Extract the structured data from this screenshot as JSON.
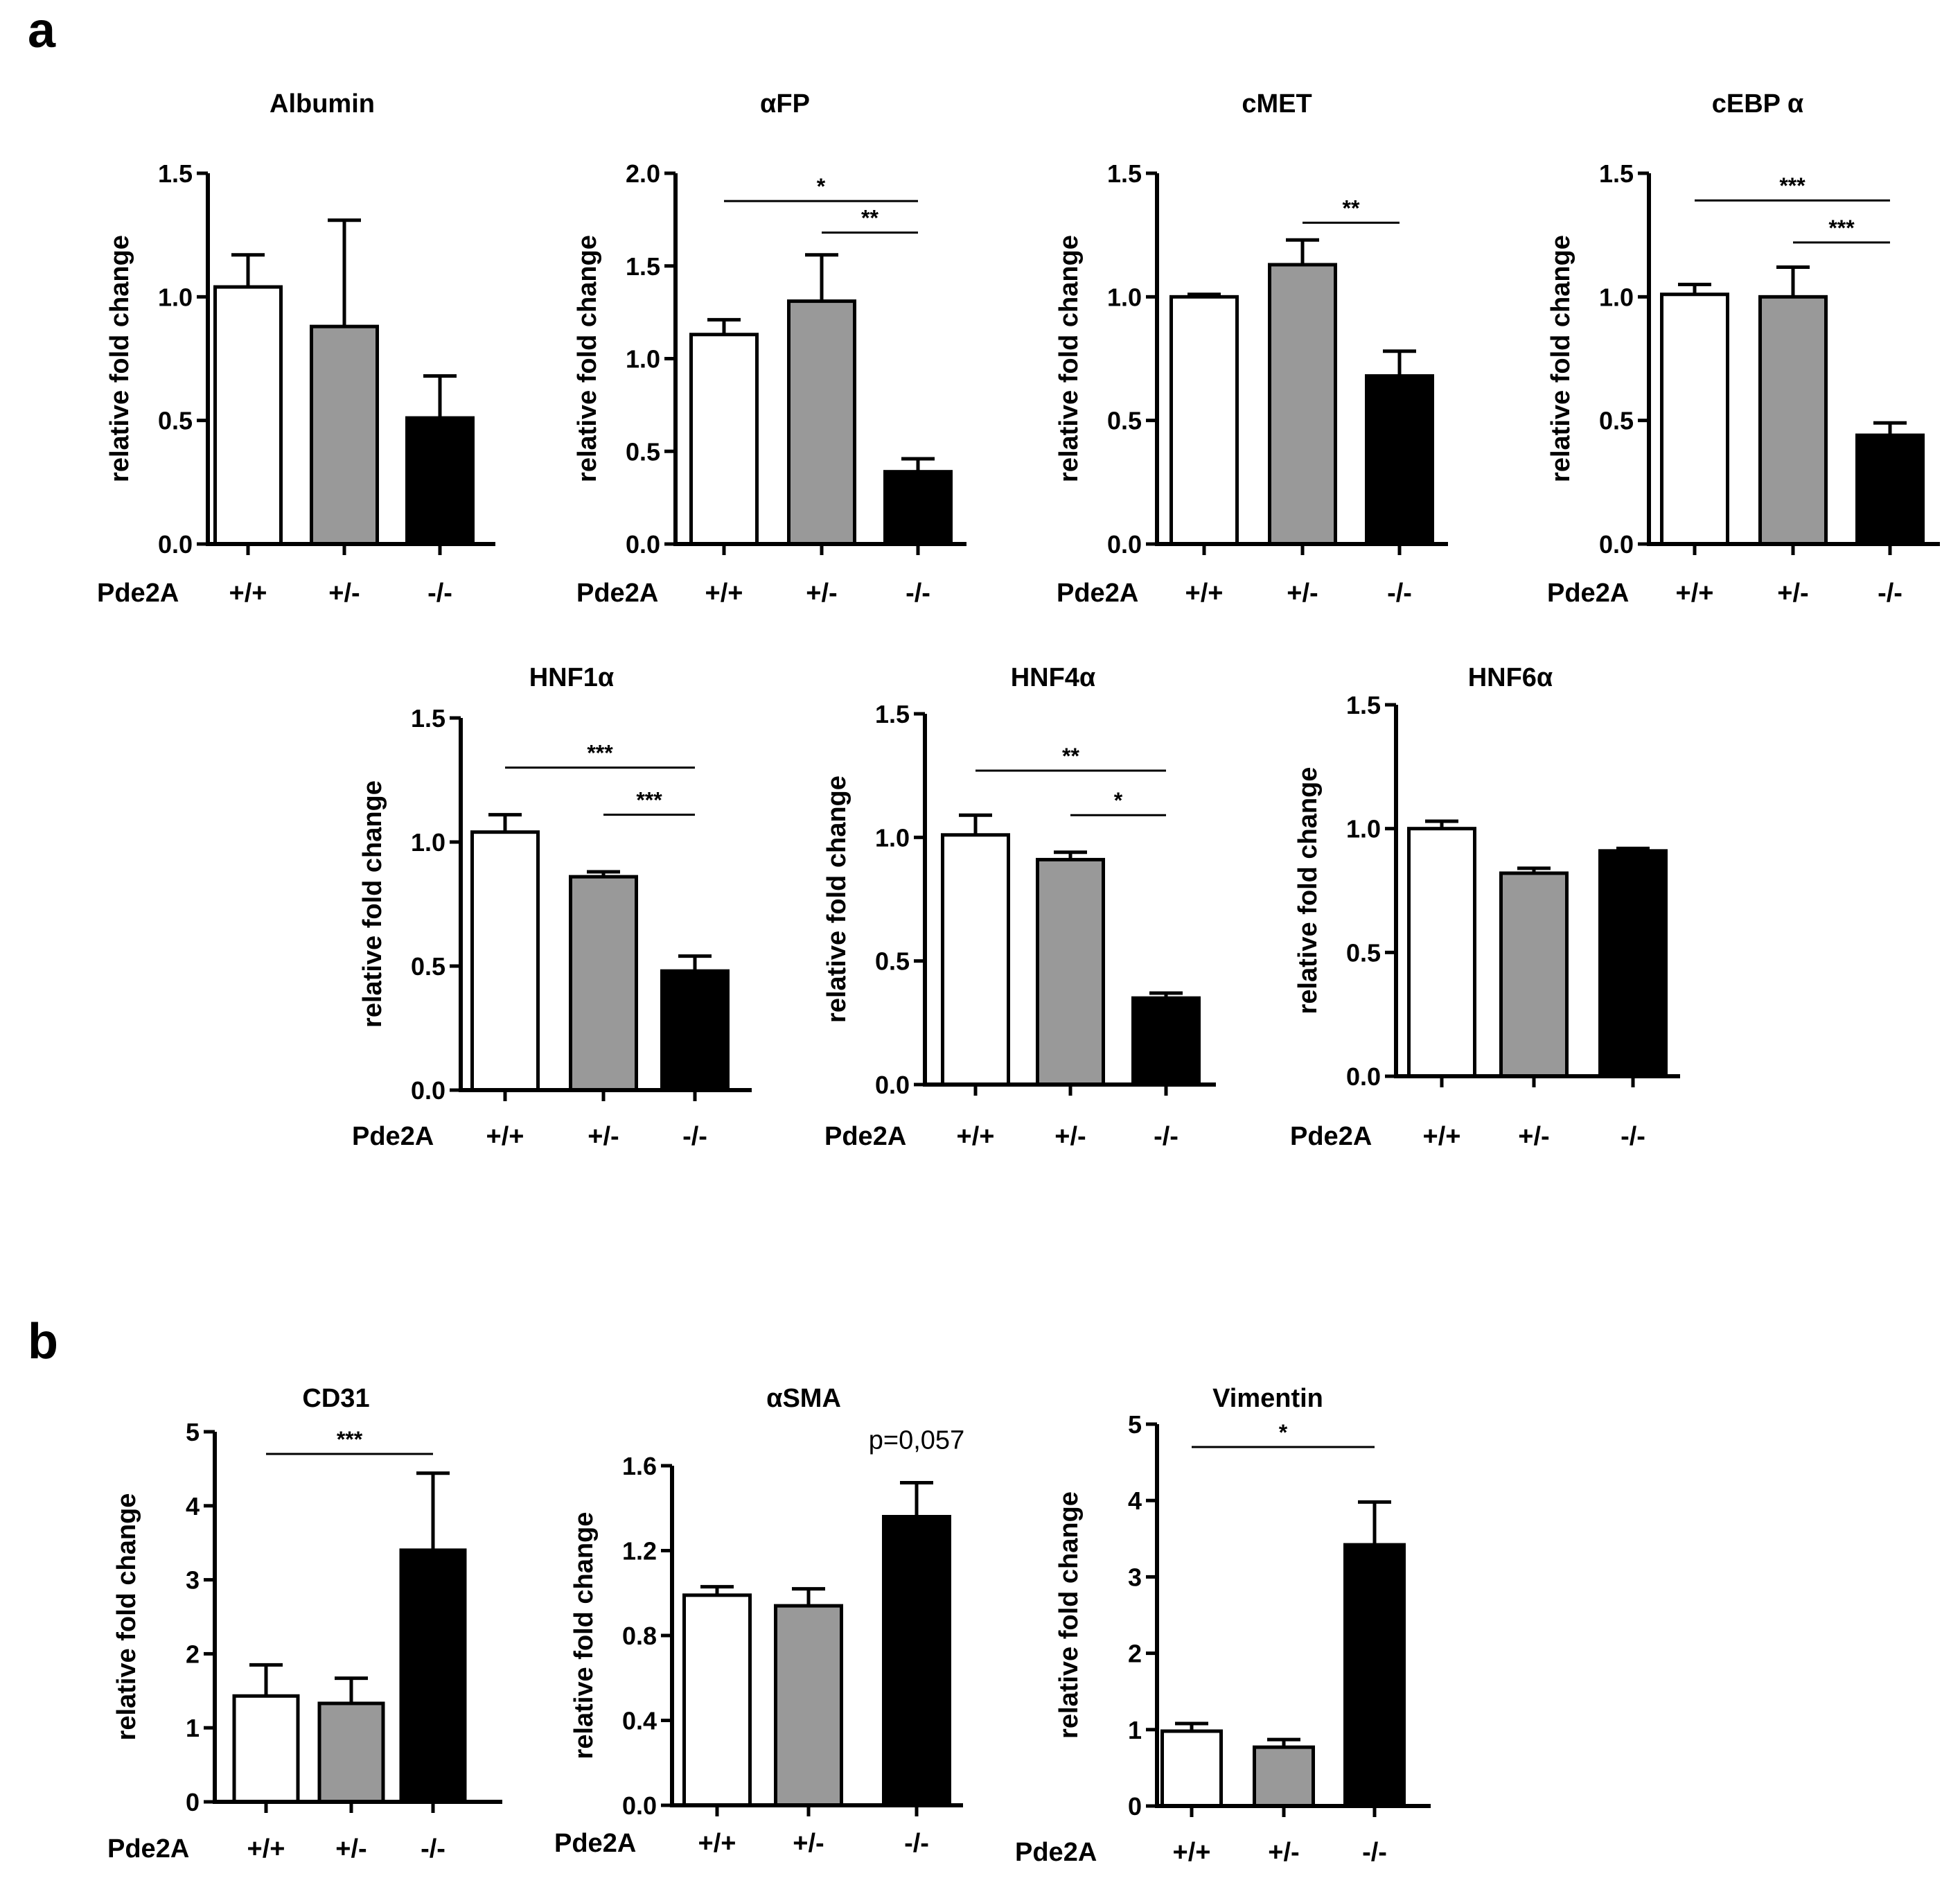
{
  "panels": [
    {
      "letter": "a"
    },
    {
      "letter": "b"
    }
  ],
  "chart_data": [
    {
      "type": "bar",
      "panel": "a",
      "title": "Albumin",
      "ylabel": "relative fold change",
      "xlabel": "Pde2A",
      "categories": [
        "+/+",
        "+/-",
        "-/-"
      ],
      "values": [
        1.04,
        0.88,
        0.51
      ],
      "errors": [
        0.13,
        0.43,
        0.17
      ],
      "ylim": [
        0,
        1.5
      ],
      "yticks": [
        0.0,
        0.5,
        1.0,
        1.5
      ],
      "ytick_labels": [
        "0.0",
        "0.5",
        "1.0",
        "1.5"
      ],
      "bar_colors": [
        "#ffffff",
        "#999999",
        "#000000"
      ],
      "significance": []
    },
    {
      "type": "bar",
      "panel": "a",
      "title": "αFP",
      "ylabel": "relative fold change",
      "xlabel": "Pde2A",
      "categories": [
        "+/+",
        "+/-",
        "-/-"
      ],
      "values": [
        1.13,
        1.31,
        0.39
      ],
      "errors": [
        0.08,
        0.25,
        0.07
      ],
      "ylim": [
        0,
        2.0
      ],
      "yticks": [
        0.0,
        0.5,
        1.0,
        1.5,
        2.0
      ],
      "ytick_labels": [
        "0.0",
        "0.5",
        "1.0",
        "1.5",
        "2.0"
      ],
      "bar_colors": [
        "#ffffff",
        "#999999",
        "#000000"
      ],
      "significance": [
        {
          "from": 0,
          "to": 2,
          "label": "*",
          "y": 1.85
        },
        {
          "from": 1,
          "to": 2,
          "label": "**",
          "y": 1.68
        }
      ]
    },
    {
      "type": "bar",
      "panel": "a",
      "title": "cMET",
      "ylabel": "relative fold change",
      "xlabel": "Pde2A",
      "categories": [
        "+/+",
        "+/-",
        "-/-"
      ],
      "values": [
        1.0,
        1.13,
        0.68
      ],
      "errors": [
        0.01,
        0.1,
        0.1
      ],
      "ylim": [
        0,
        1.5
      ],
      "yticks": [
        0.0,
        0.5,
        1.0,
        1.5
      ],
      "ytick_labels": [
        "0.0",
        "0.5",
        "1.0",
        "1.5"
      ],
      "bar_colors": [
        "#ffffff",
        "#999999",
        "#000000"
      ],
      "significance": [
        {
          "from": 1,
          "to": 2,
          "label": "**",
          "y": 1.3
        }
      ]
    },
    {
      "type": "bar",
      "panel": "a",
      "title": "cEBP α",
      "ylabel": "relative fold change",
      "xlabel": "Pde2A",
      "categories": [
        "+/+",
        "+/-",
        "-/-"
      ],
      "values": [
        1.01,
        1.0,
        0.44
      ],
      "errors": [
        0.04,
        0.12,
        0.05
      ],
      "ylim": [
        0,
        1.5
      ],
      "yticks": [
        0.0,
        0.5,
        1.0,
        1.5
      ],
      "ytick_labels": [
        "0.0",
        "0.5",
        "1.0",
        "1.5"
      ],
      "bar_colors": [
        "#ffffff",
        "#999999",
        "#000000"
      ],
      "significance": [
        {
          "from": 0,
          "to": 2,
          "label": "***",
          "y": 1.39
        },
        {
          "from": 1,
          "to": 2,
          "label": "***",
          "y": 1.22
        }
      ]
    },
    {
      "type": "bar",
      "panel": "a",
      "title": "HNF1α",
      "ylabel": "relative fold change",
      "xlabel": "Pde2A",
      "categories": [
        "+/+",
        "+/-",
        "-/-"
      ],
      "values": [
        1.04,
        0.86,
        0.48
      ],
      "errors": [
        0.07,
        0.02,
        0.06
      ],
      "ylim": [
        0,
        1.5
      ],
      "yticks": [
        0.0,
        0.5,
        1.0,
        1.5
      ],
      "ytick_labels": [
        "0.0",
        "0.5",
        "1.0",
        "1.5"
      ],
      "bar_colors": [
        "#ffffff",
        "#999999",
        "#000000"
      ],
      "significance": [
        {
          "from": 0,
          "to": 2,
          "label": "***",
          "y": 1.3
        },
        {
          "from": 1,
          "to": 2,
          "label": "***",
          "y": 1.11
        }
      ]
    },
    {
      "type": "bar",
      "panel": "a",
      "title": "HNF4α",
      "ylabel": "relative fold change",
      "xlabel": "Pde2A",
      "categories": [
        "+/+",
        "+/-",
        "-/-"
      ],
      "values": [
        1.01,
        0.91,
        0.35
      ],
      "errors": [
        0.08,
        0.03,
        0.02
      ],
      "ylim": [
        0,
        1.5
      ],
      "yticks": [
        0.0,
        0.5,
        1.0,
        1.5
      ],
      "ytick_labels": [
        "0.0",
        "0.5",
        "1.0",
        "1.5"
      ],
      "bar_colors": [
        "#ffffff",
        "#999999",
        "#000000"
      ],
      "significance": [
        {
          "from": 0,
          "to": 2,
          "label": "**",
          "y": 1.27
        },
        {
          "from": 1,
          "to": 2,
          "label": "*",
          "y": 1.09
        }
      ]
    },
    {
      "type": "bar",
      "panel": "a",
      "title": "HNF6α",
      "ylabel": "relative fold change",
      "xlabel": "Pde2A",
      "categories": [
        "+/+",
        "+/-",
        "-/-"
      ],
      "values": [
        1.0,
        0.82,
        0.91
      ],
      "errors": [
        0.03,
        0.02,
        0.01
      ],
      "ylim": [
        0,
        1.5
      ],
      "yticks": [
        0.0,
        0.5,
        1.0,
        1.5
      ],
      "ytick_labels": [
        "0.0",
        "0.5",
        "1.0",
        "1.5"
      ],
      "bar_colors": [
        "#ffffff",
        "#999999",
        "#000000"
      ],
      "significance": []
    },
    {
      "type": "bar",
      "panel": "b",
      "title": "CD31",
      "ylabel": "relative fold change",
      "xlabel": "Pde2A",
      "categories": [
        "+/+",
        "+/-",
        "-/-"
      ],
      "values": [
        1.43,
        1.33,
        3.4
      ],
      "errors": [
        0.42,
        0.34,
        1.04
      ],
      "ylim": [
        0,
        5
      ],
      "yticks": [
        0,
        1,
        2,
        3,
        4,
        5
      ],
      "ytick_labels": [
        "0",
        "1",
        "2",
        "3",
        "4",
        "5"
      ],
      "bar_colors": [
        "#ffffff",
        "#999999",
        "#000000"
      ],
      "significance": [
        {
          "from": 0,
          "to": 2,
          "label": "***",
          "y": 4.7
        }
      ]
    },
    {
      "type": "bar",
      "panel": "b",
      "title": "αSMA",
      "ylabel": "relative fold change",
      "xlabel": "Pde2A",
      "categories": [
        "+/+",
        "+/-",
        "-/-"
      ],
      "values": [
        0.99,
        0.94,
        1.36
      ],
      "errors": [
        0.04,
        0.08,
        0.16
      ],
      "ylim": [
        0,
        1.6
      ],
      "yticks": [
        0.0,
        0.4,
        0.8,
        1.2,
        1.6
      ],
      "ytick_labels": [
        "0.0",
        "0.4",
        "0.8",
        "1.2",
        "1.6"
      ],
      "bar_colors": [
        "#ffffff",
        "#999999",
        "#000000"
      ],
      "significance": [],
      "annotation": "p=0,057"
    },
    {
      "type": "bar",
      "panel": "b",
      "title": "Vimentin",
      "ylabel": "relative fold change",
      "xlabel": "Pde2A",
      "categories": [
        "+/+",
        "+/-",
        "-/-"
      ],
      "values": [
        0.98,
        0.77,
        3.42
      ],
      "errors": [
        0.1,
        0.1,
        0.56
      ],
      "ylim": [
        0,
        5
      ],
      "yticks": [
        0,
        1,
        2,
        3,
        4,
        5
      ],
      "ytick_labels": [
        "0",
        "1",
        "2",
        "3",
        "4",
        "5"
      ],
      "bar_colors": [
        "#ffffff",
        "#999999",
        "#000000"
      ],
      "significance": [
        {
          "from": 0,
          "to": 2,
          "label": "*",
          "y": 4.7
        }
      ]
    }
  ]
}
